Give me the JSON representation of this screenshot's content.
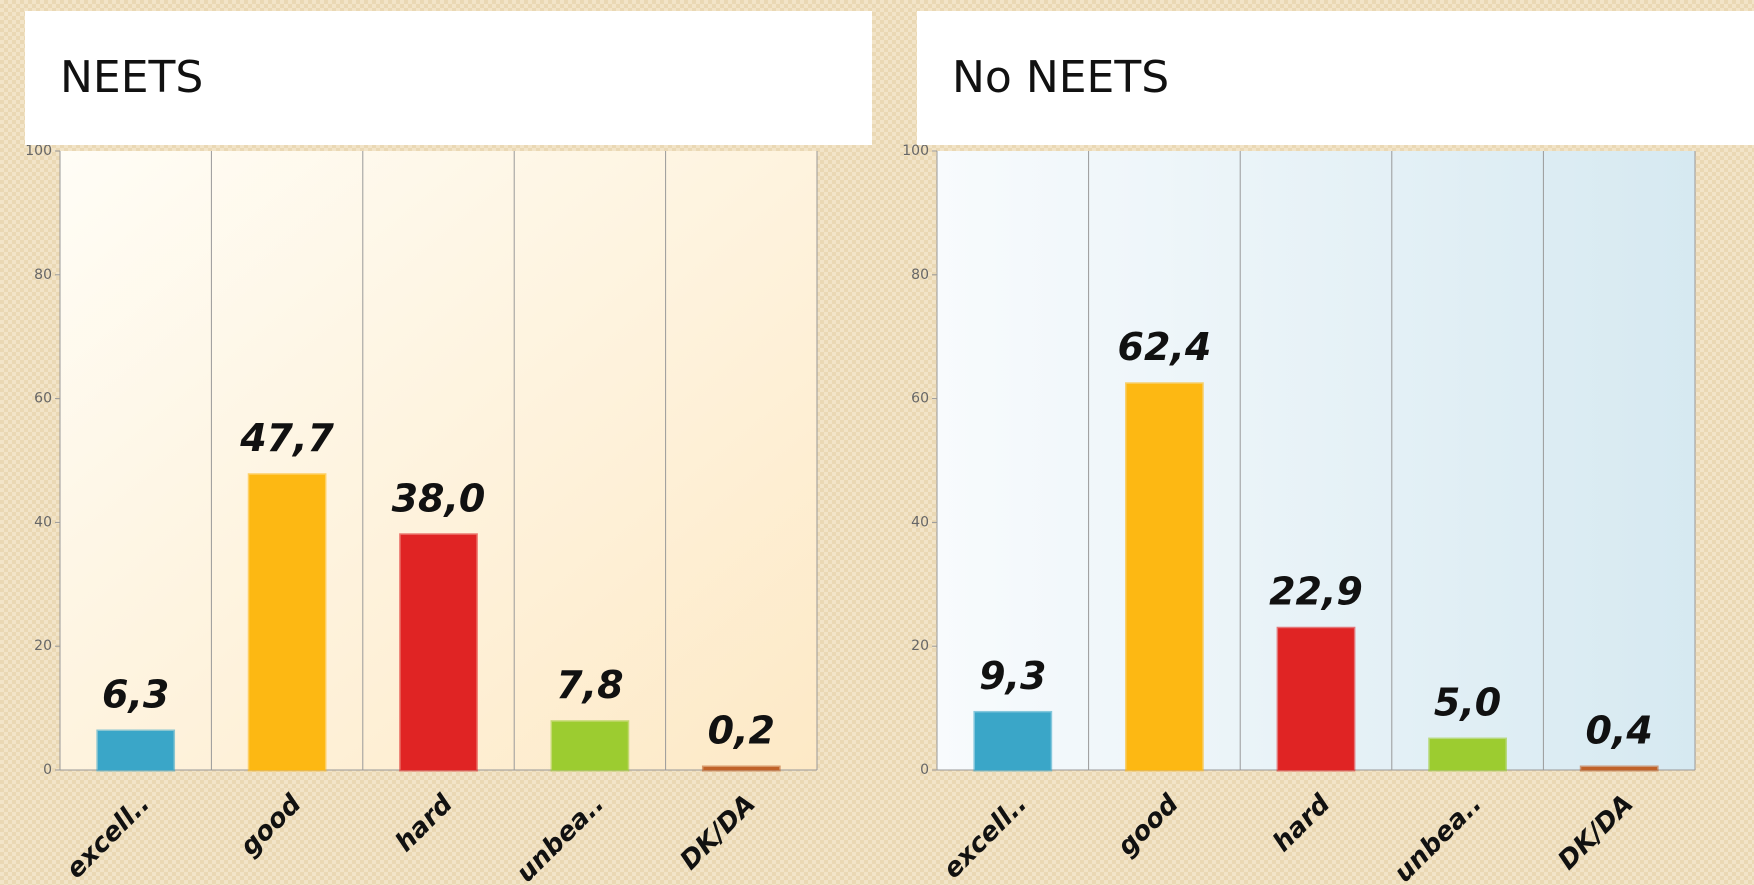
{
  "chart_data": [
    {
      "type": "bar",
      "title": "NEETS",
      "categories": [
        "excell..",
        "good",
        "hard",
        "unbea..",
        "DK/DA"
      ],
      "values": [
        6.3,
        47.7,
        38.0,
        7.8,
        0.2
      ],
      "value_labels": [
        "6,3",
        "47,7",
        "38,0",
        "7,8",
        "0,2"
      ],
      "colors": [
        "#3aa6c8",
        "#fdb813",
        "#e02424",
        "#9ccc30",
        "#c0622a"
      ],
      "ylim": [
        0,
        100
      ],
      "yticks": [
        0,
        20,
        40,
        60,
        80,
        100
      ]
    },
    {
      "type": "bar",
      "title": "No NEETS",
      "categories": [
        "excell..",
        "good",
        "hard",
        "unbea..",
        "DK/DA"
      ],
      "values": [
        9.3,
        62.4,
        22.9,
        5.0,
        0.4
      ],
      "value_labels": [
        "9,3",
        "62,4",
        "22,9",
        "5,0",
        "0,4"
      ],
      "colors": [
        "#3aa6c8",
        "#fdb813",
        "#e02424",
        "#9ccc30",
        "#c0622a"
      ],
      "ylim": [
        0,
        100
      ],
      "yticks": [
        0,
        20,
        40,
        60,
        80,
        100
      ]
    }
  ]
}
